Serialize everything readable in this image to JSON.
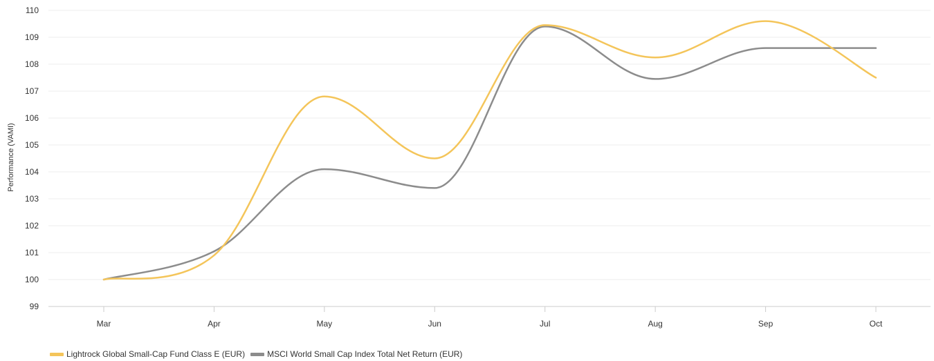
{
  "chart_data": {
    "type": "line",
    "categories": [
      "Mar",
      "Apr",
      "May",
      "Jun",
      "Jul",
      "Aug",
      "Sep",
      "Oct"
    ],
    "ylabel": "Performance (VAMI)",
    "xlabel": "",
    "ylim": [
      99,
      110
    ],
    "yticks": [
      99,
      100,
      101,
      102,
      103,
      104,
      105,
      106,
      107,
      108,
      109,
      110
    ],
    "grid": true,
    "legend_position": "bottom-left",
    "series": [
      {
        "name": "Lightrock Global Small-Cap Fund Class E (EUR)",
        "color": "#F4C55A",
        "values": [
          100.0,
          100.9,
          106.8,
          104.5,
          109.45,
          108.25,
          109.6,
          107.5
        ]
      },
      {
        "name": "MSCI World Small Cap Index Total Net Return (EUR)",
        "color": "#8C8C8C",
        "values": [
          100.0,
          101.05,
          104.1,
          103.4,
          109.4,
          107.45,
          108.6,
          108.6
        ]
      }
    ]
  }
}
